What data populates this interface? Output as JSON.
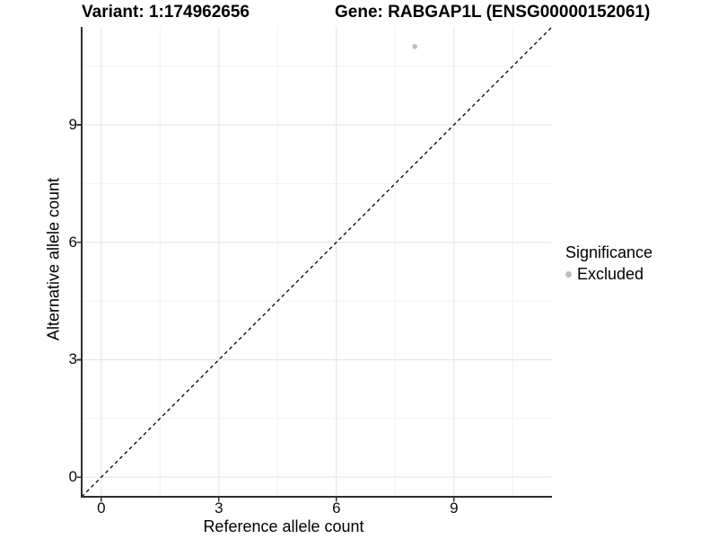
{
  "chart_data": {
    "type": "scatter",
    "title_left": "Variant: 1:174962656",
    "title_right": "Gene: RABGAP1L (ENSG00000152061)",
    "xlabel": "Reference allele count",
    "ylabel": "Alternative allele count",
    "xlim": [
      -0.5,
      11.5
    ],
    "ylim": [
      -0.5,
      11.5
    ],
    "x_ticks": [
      0,
      3,
      6,
      9
    ],
    "y_ticks": [
      0,
      3,
      6,
      9
    ],
    "x_minor_ticks": [
      1.5,
      4.5,
      7.5,
      10.5
    ],
    "y_minor_ticks": [
      1.5,
      4.5,
      7.5,
      10.5
    ],
    "grid": "major+minor",
    "series": [
      {
        "name": "Excluded",
        "color": "#bfbfbf",
        "point_radius": 2.8,
        "points": [
          {
            "x": 8,
            "y": 11
          }
        ]
      }
    ],
    "identity_line": {
      "from": [
        -0.5,
        -0.5
      ],
      "to": [
        11.5,
        11.5
      ],
      "style": "dashed",
      "color": "#000000"
    },
    "legend": {
      "position": "right",
      "title": "Significance",
      "items": [
        {
          "label": "Excluded",
          "color": "#bebebe"
        }
      ]
    },
    "colors": {
      "background": "#ffffff",
      "axis_line": "#2e2e2e",
      "tick_mark": "#333333",
      "grid_major": "#e5e5e5",
      "grid_minor": "#f2f2f2"
    }
  }
}
